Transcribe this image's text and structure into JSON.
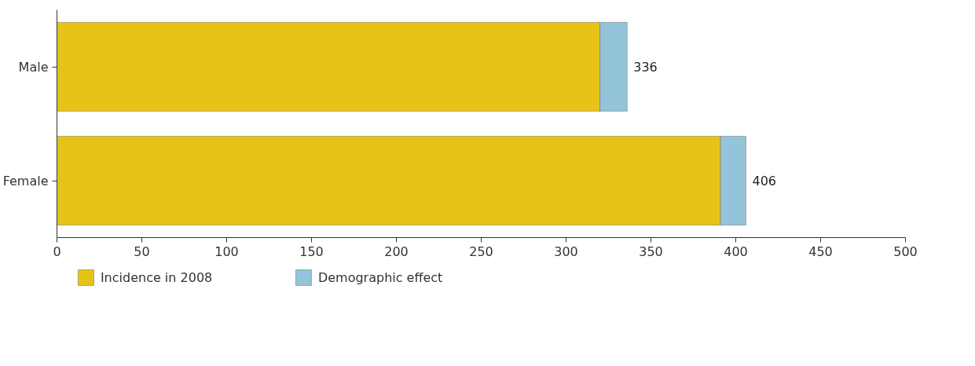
{
  "chart_data": {
    "type": "bar",
    "orientation": "horizontal",
    "stacked": true,
    "categories": [
      "Male",
      "Female"
    ],
    "series": [
      {
        "name": "Incidence in 2008",
        "color": "#e6c417",
        "values": [
          320,
          391
        ]
      },
      {
        "name": "Demographic effect",
        "color": "#93c4da",
        "values": [
          16,
          15
        ]
      }
    ],
    "totals": [
      "336",
      "406"
    ],
    "xlim": [
      0,
      500
    ],
    "xticks": [
      0,
      50,
      100,
      150,
      200,
      250,
      300,
      350,
      400,
      450,
      500
    ],
    "grid": false,
    "legend": "bottom left"
  }
}
